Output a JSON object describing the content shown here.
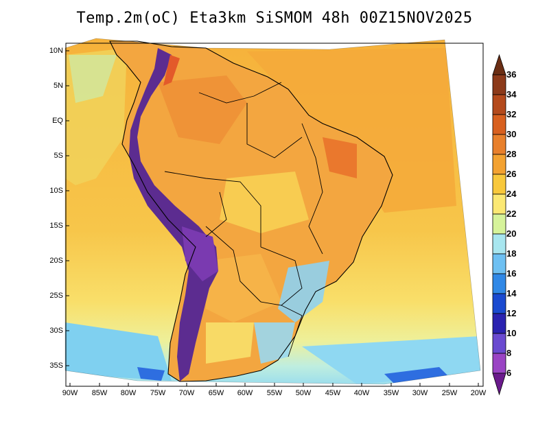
{
  "title": "Temp.2m(oC) Eta3km SiSMOM 48h 00Z15NOV2025",
  "axes": {
    "lat_labels": [
      "10N",
      "5N",
      "EQ",
      "5S",
      "10S",
      "15S",
      "20S",
      "25S",
      "30S",
      "35S"
    ],
    "lon_labels": [
      "90W",
      "85W",
      "80W",
      "75W",
      "70W",
      "65W",
      "60W",
      "55W",
      "50W",
      "45W",
      "40W",
      "35W",
      "30W",
      "25W",
      "20W"
    ]
  },
  "colorbar": {
    "labels": [
      "36",
      "34",
      "32",
      "30",
      "28",
      "26",
      "24",
      "22",
      "20",
      "18",
      "16",
      "14",
      "12",
      "10",
      "8",
      "6"
    ],
    "colors": [
      "#6b2e14",
      "#8c3a1a",
      "#c45a1e",
      "#e8762a",
      "#f39a2e",
      "#f8c23a",
      "#fbe66a",
      "#f4f6a0",
      "#c9f0a0",
      "#9be8f0",
      "#5fb4f0",
      "#2e7ee6",
      "#1a44c8",
      "#2a1ea8",
      "#6a3ec8",
      "#9a3ec0",
      "#6a1a8c",
      "#4a1a78"
    ]
  },
  "palette": {
    "ocean_warm": "#f6b13a",
    "ocean_mid": "#f8d45a",
    "ocean_cool": "#eef09a",
    "ocean_cold": "#9ee0f2",
    "land_base": "#f3a23c",
    "andes": "#5a2a8c",
    "border": "#000000"
  }
}
